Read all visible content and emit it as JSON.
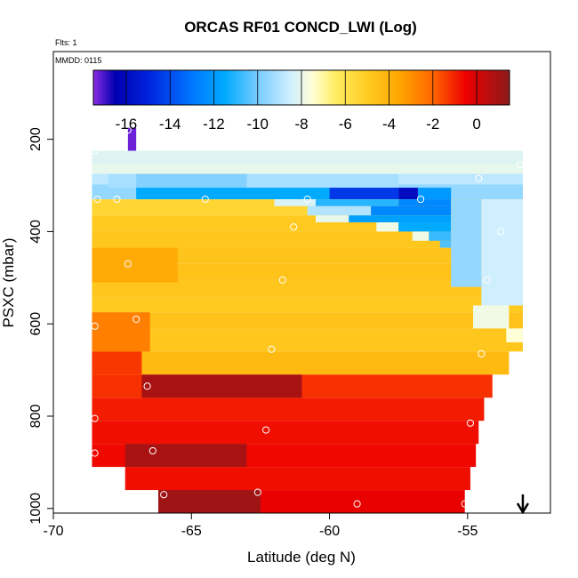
{
  "chart_data": {
    "type": "heatmap",
    "title": "ORCAS RF01 CONCD_LWI (Log)",
    "meta": {
      "flights": "Flts: 1",
      "date": "MMDD: 0115"
    },
    "xlabel": "Latitude (deg N)",
    "ylabel": "PSXC (mbar)",
    "xlim": [
      -70,
      -52
    ],
    "ylim": [
      1010,
      10
    ],
    "x_ticks": [
      -70,
      -65,
      -60,
      -55
    ],
    "y_ticks": [
      200,
      400,
      600,
      800,
      1000
    ],
    "colorbar": {
      "range": [
        -17.5,
        1.5
      ],
      "ticks": [
        -16,
        -14,
        -12,
        -10,
        -8,
        -6,
        -4,
        -2,
        0
      ],
      "stops": [
        {
          "v": -17.5,
          "color": "#8a2be2"
        },
        {
          "v": -16.5,
          "color": "#0000b0"
        },
        {
          "v": -15.0,
          "color": "#0022dd"
        },
        {
          "v": -13.0,
          "color": "#0077ff"
        },
        {
          "v": -11.5,
          "color": "#00aaff"
        },
        {
          "v": -10.0,
          "color": "#77ccff"
        },
        {
          "v": -8.5,
          "color": "#cfefff"
        },
        {
          "v": -7.5,
          "color": "#ffffd8"
        },
        {
          "v": -6.5,
          "color": "#ffee66"
        },
        {
          "v": -5.0,
          "color": "#ffcc22"
        },
        {
          "v": -3.5,
          "color": "#ffa500"
        },
        {
          "v": -2.0,
          "color": "#ff6600"
        },
        {
          "v": -0.5,
          "color": "#ee0000"
        },
        {
          "v": 1.5,
          "color": "#8b1a1a"
        }
      ]
    },
    "arrow_marker": {
      "latitude": -53,
      "direction": "down"
    },
    "grid": false,
    "layers": [
      {
        "p_top": 175,
        "p_bot": 225,
        "x0": -67.3,
        "x1": -67.0,
        "value": -17.3
      },
      {
        "p_top": 225,
        "p_bot": 265,
        "x0": -68.6,
        "x1": -53.0,
        "value": -8.2
      },
      {
        "p_top": 265,
        "p_bot": 298,
        "x0": -68.6,
        "x1": -53.0,
        "value": -8.8
      },
      {
        "p_top": 298,
        "p_bot": 330,
        "x0": -68.6,
        "x1": -53.0,
        "value": -9.5
      },
      {
        "p_top": 330,
        "p_bot": 365,
        "x0": -68.6,
        "x1": -53.0,
        "value": -5.4
      },
      {
        "p_top": 365,
        "p_bot": 400,
        "x0": -68.6,
        "x1": -53.0,
        "value": -4.9
      },
      {
        "p_top": 400,
        "p_bot": 435,
        "x0": -68.6,
        "x1": -53.0,
        "value": -4.8
      },
      {
        "p_top": 435,
        "p_bot": 470,
        "x0": -68.6,
        "x1": -53.0,
        "value": -4.7
      },
      {
        "p_top": 470,
        "p_bot": 505,
        "x0": -68.6,
        "x1": -53.0,
        "value": -4.6
      },
      {
        "p_top": 505,
        "p_bot": 540,
        "x0": -68.6,
        "x1": -53.0,
        "value": -4.8
      },
      {
        "p_top": 540,
        "p_bot": 575,
        "x0": -68.6,
        "x1": -53.0,
        "value": -4.9
      },
      {
        "p_top": 575,
        "p_bot": 610,
        "x0": -68.6,
        "x1": -53.0,
        "value": -4.6
      },
      {
        "p_top": 610,
        "p_bot": 660,
        "x0": -68.6,
        "x1": -53.0,
        "value": -4.8
      },
      {
        "p_top": 660,
        "p_bot": 710,
        "x0": -68.6,
        "x1": -53.5,
        "value": -4.3
      },
      {
        "p_top": 710,
        "p_bot": 760,
        "x0": -68.6,
        "x1": -54.1,
        "value": -1.2
      },
      {
        "p_top": 760,
        "p_bot": 810,
        "x0": -68.6,
        "x1": -54.4,
        "value": -0.9
      },
      {
        "p_top": 810,
        "p_bot": 860,
        "x0": -68.6,
        "x1": -54.6,
        "value": -0.7
      },
      {
        "p_top": 860,
        "p_bot": 910,
        "x0": -68.6,
        "x1": -54.7,
        "value": -0.6
      },
      {
        "p_top": 910,
        "p_bot": 960,
        "x0": -67.4,
        "x1": -54.9,
        "value": -0.7
      },
      {
        "p_top": 960,
        "p_bot": 1010,
        "x0": -66.2,
        "x1": -55.1,
        "value": -0.4
      }
    ],
    "patches": [
      {
        "p_top": 255,
        "p_bot": 275,
        "x0": -68.6,
        "x1": -53.0,
        "value": -8.0
      },
      {
        "p_top": 275,
        "p_bot": 305,
        "x0": -68.0,
        "x1": -57.5,
        "value": -9.2
      },
      {
        "p_top": 275,
        "p_bot": 305,
        "x0": -67.0,
        "x1": -63.0,
        "value": -9.8
      },
      {
        "p_top": 305,
        "p_bot": 330,
        "x0": -67.0,
        "x1": -60.0,
        "value": -11.5
      },
      {
        "p_top": 305,
        "p_bot": 330,
        "x0": -60.0,
        "x1": -57.5,
        "value": -14.5
      },
      {
        "p_top": 305,
        "p_bot": 330,
        "x0": -57.5,
        "x1": -56.8,
        "value": -16.0
      },
      {
        "p_top": 305,
        "p_bot": 330,
        "x0": -56.8,
        "x1": -55.6,
        "value": -12.0
      },
      {
        "p_top": 330,
        "p_bot": 345,
        "x0": -62.0,
        "x1": -60.5,
        "value": -8.3
      },
      {
        "p_top": 330,
        "p_bot": 345,
        "x0": -60.5,
        "x1": -57.5,
        "value": -11.0
      },
      {
        "p_top": 330,
        "p_bot": 345,
        "x0": -57.5,
        "x1": -55.6,
        "value": -12.5
      },
      {
        "p_top": 345,
        "p_bot": 365,
        "x0": -60.8,
        "x1": -58.5,
        "value": -9.0
      },
      {
        "p_top": 345,
        "p_bot": 365,
        "x0": -58.5,
        "x1": -55.6,
        "value": -12.5
      },
      {
        "p_top": 365,
        "p_bot": 380,
        "x0": -60.5,
        "x1": -59.3,
        "value": -8.0
      },
      {
        "p_top": 365,
        "p_bot": 380,
        "x0": -59.3,
        "x1": -55.6,
        "value": -11.8
      },
      {
        "p_top": 380,
        "p_bot": 400,
        "x0": -58.3,
        "x1": -57.5,
        "value": -7.8
      },
      {
        "p_top": 380,
        "p_bot": 400,
        "x0": -57.5,
        "x1": -55.6,
        "value": -11.5
      },
      {
        "p_top": 400,
        "p_bot": 420,
        "x0": -57.0,
        "x1": -56.4,
        "value": -7.8
      },
      {
        "p_top": 400,
        "p_bot": 420,
        "x0": -56.4,
        "x1": -55.6,
        "value": -10.8
      },
      {
        "p_top": 420,
        "p_bot": 435,
        "x0": -56.0,
        "x1": -55.6,
        "value": -10.5
      },
      {
        "p_top": 330,
        "p_bot": 520,
        "x0": -55.6,
        "x1": -54.5,
        "value": -9.5
      },
      {
        "p_top": 330,
        "p_bot": 560,
        "x0": -54.5,
        "x1": -53.0,
        "value": -8.5
      },
      {
        "p_top": 560,
        "p_bot": 610,
        "x0": -54.8,
        "x1": -53.5,
        "value": -7.8
      },
      {
        "p_top": 610,
        "p_bot": 640,
        "x0": -53.6,
        "x1": -53.0,
        "value": -7.5
      },
      {
        "p_top": 575,
        "p_bot": 660,
        "x0": -68.6,
        "x1": -66.5,
        "value": -2.6
      },
      {
        "p_top": 660,
        "p_bot": 710,
        "x0": -68.6,
        "x1": -66.8,
        "value": -1.3
      },
      {
        "p_top": 435,
        "p_bot": 510,
        "x0": -68.6,
        "x1": -65.5,
        "value": -3.7
      },
      {
        "p_top": 710,
        "p_bot": 760,
        "x0": -66.8,
        "x1": -61.0,
        "value": 0.9
      },
      {
        "p_top": 860,
        "p_bot": 910,
        "x0": -67.4,
        "x1": -63.0,
        "value": 0.9
      },
      {
        "p_top": 960,
        "p_bot": 1010,
        "x0": -66.2,
        "x1": -62.5,
        "value": 1.1
      }
    ],
    "points": [
      {
        "lat": -67.3,
        "p": 180
      },
      {
        "lat": -68.5,
        "p": 225
      },
      {
        "lat": -68.4,
        "p": 330
      },
      {
        "lat": -67.7,
        "p": 330
      },
      {
        "lat": -64.5,
        "p": 330
      },
      {
        "lat": -60.8,
        "p": 330
      },
      {
        "lat": -56.7,
        "p": 330
      },
      {
        "lat": -61.3,
        "p": 390
      },
      {
        "lat": -54.6,
        "p": 285
      },
      {
        "lat": -53.1,
        "p": 255
      },
      {
        "lat": -53.8,
        "p": 400
      },
      {
        "lat": -67.3,
        "p": 470
      },
      {
        "lat": -61.7,
        "p": 505
      },
      {
        "lat": -54.3,
        "p": 505
      },
      {
        "lat": -67.0,
        "p": 590
      },
      {
        "lat": -68.5,
        "p": 605
      },
      {
        "lat": -62.1,
        "p": 655
      },
      {
        "lat": -54.5,
        "p": 665
      },
      {
        "lat": -53.0,
        "p": 700
      },
      {
        "lat": -66.6,
        "p": 735
      },
      {
        "lat": -68.5,
        "p": 805
      },
      {
        "lat": -62.3,
        "p": 830
      },
      {
        "lat": -54.9,
        "p": 815
      },
      {
        "lat": -68.5,
        "p": 880
      },
      {
        "lat": -66.4,
        "p": 875
      },
      {
        "lat": -66.0,
        "p": 970
      },
      {
        "lat": -62.6,
        "p": 965
      },
      {
        "lat": -59.0,
        "p": 990
      },
      {
        "lat": -55.1,
        "p": 990
      }
    ]
  }
}
